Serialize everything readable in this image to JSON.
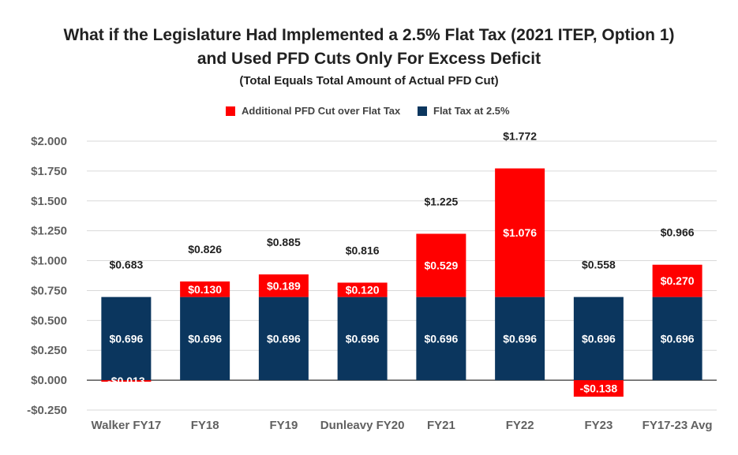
{
  "chart_data": {
    "type": "bar",
    "stacked": true,
    "title": "What if the Legislature Had Implemented a 2.5% Flat Tax (2021 ITEP, Option 1)",
    "title_line2": "and Used PFD Cuts Only For Excess Deficit",
    "subtitle": "(Total Equals Total Amount of Actual PFD Cut)",
    "categories": [
      "Walker FY17",
      "FY18",
      "FY19",
      "Dunleavy FY20",
      "FY21",
      "FY22",
      "FY23",
      "FY17-23 Avg"
    ],
    "series": [
      {
        "name": "Flat Tax at 2.5%",
        "color": "#0b365e",
        "values": [
          0.696,
          0.696,
          0.696,
          0.696,
          0.696,
          0.696,
          0.696,
          0.696
        ],
        "labels": [
          "$0.696",
          "$0.696",
          "$0.696",
          "$0.696",
          "$0.696",
          "$0.696",
          "$0.696",
          "$0.696"
        ]
      },
      {
        "name": "Additional PFD Cut over Flat Tax",
        "color": "#ff0000",
        "values": [
          -0.013,
          0.13,
          0.189,
          0.12,
          0.529,
          1.076,
          -0.138,
          0.27
        ],
        "labels": [
          "-$0.013",
          "$0.130",
          "$0.189",
          "$0.120",
          "$0.529",
          "$1.076",
          "-$0.138",
          "$0.270"
        ]
      }
    ],
    "totals": [
      0.683,
      0.826,
      0.885,
      0.816,
      1.225,
      1.772,
      0.558,
      0.966
    ],
    "total_labels": [
      "$0.683",
      "$0.826",
      "$0.885",
      "$0.816",
      "$1.225",
      "$1.772",
      "$0.558",
      "$0.966"
    ],
    "ylim": [
      -0.25,
      2.0
    ],
    "yticks": [
      -0.25,
      0,
      0.25,
      0.5,
      0.75,
      1.0,
      1.25,
      1.5,
      1.75,
      2.0
    ],
    "ytick_labels": [
      "-$0.250",
      "$0.000",
      "$0.250",
      "$0.500",
      "$0.750",
      "$1.000",
      "$1.250",
      "$1.500",
      "$1.750",
      "$2.000"
    ],
    "legend_position": "top",
    "grid": true
  }
}
